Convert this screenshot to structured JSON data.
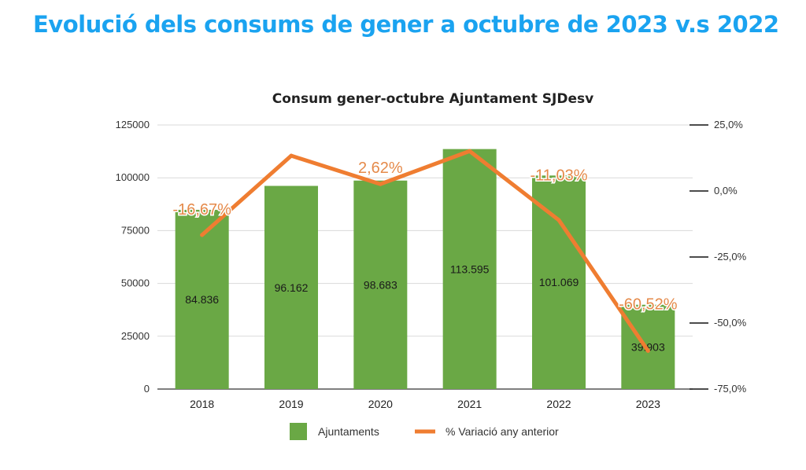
{
  "page_title": "Evolució dels consums de gener a octubre de 2023 v.s 2022",
  "colors": {
    "title": "#1aa3f0",
    "bars": "#6aa845",
    "line": "#ef7d31",
    "pct_label": "#e58a4a",
    "grid": "#d9d9d9"
  },
  "chart_data": {
    "type": "bar",
    "title": "Consum gener-octubre Ajuntament SJDesv",
    "categories": [
      "2018",
      "2019",
      "2020",
      "2021",
      "2022",
      "2023"
    ],
    "ylim": [
      0,
      125000
    ],
    "yticks": [
      "0",
      "25000",
      "50000",
      "75000",
      "100000",
      "125000"
    ],
    "y2lim": [
      -75,
      25
    ],
    "y2ticks": [
      "-75,0%",
      "-50,0%",
      "-25,0%",
      "0,0%",
      "25,0%"
    ],
    "grid": true,
    "legend_position": "bottom",
    "series": [
      {
        "name": "Ajuntaments",
        "kind": "bar",
        "color": "#6aa845",
        "values": [
          84836,
          96162,
          98683,
          113595,
          101069,
          39903
        ],
        "labels": [
          "84.836",
          "96.162",
          "98.683",
          "113.595",
          "101.069",
          "39.903"
        ]
      },
      {
        "name": "% Variació any anterior",
        "kind": "line",
        "axis": "right",
        "color": "#ef7d31",
        "values": [
          -16.67,
          13.35,
          2.62,
          15.11,
          -11.03,
          -60.52
        ],
        "labels": [
          "-16,67%",
          "",
          "2,62%",
          "",
          "-11,03%",
          "-60,52%"
        ]
      }
    ]
  }
}
